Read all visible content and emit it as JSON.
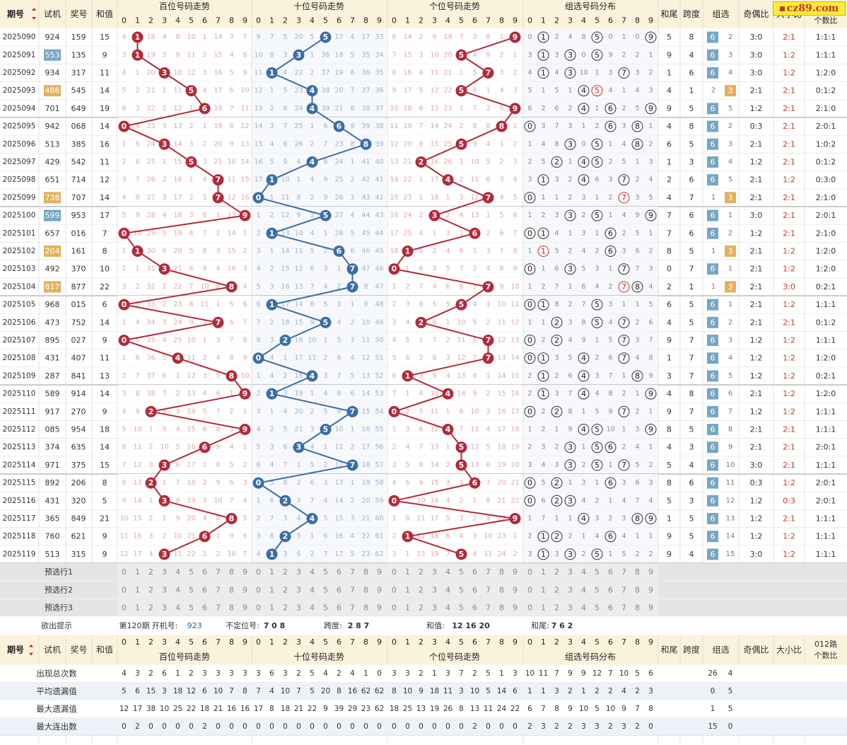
{
  "header": {
    "qihao": "期号",
    "sort_icon": "sort-arrows-icon",
    "shiji": "试机",
    "jianghao": "奖号",
    "hezhi": "和值",
    "sections": [
      "百位号码走势",
      "十位号码走势",
      "个位号码走势",
      "组选号码分布"
    ],
    "hewei": "和尾",
    "kuadu": "跨度",
    "zuxuan": "组选",
    "jiou": "奇偶比",
    "daxiao": "大小比",
    "road_line1": "012路",
    "road_line2": "个数比",
    "road_top": "个数比"
  },
  "logo_text": "cz89.com",
  "rows": [
    {
      "p": "2025090",
      "s": "924",
      "a": "159",
      "h": "15",
      "hs": "1",
      "l": "4,1,18,4,8,10,1,14,3,7",
      "t": "9,7,5,20,5,35,17,4,17,33",
      "g": "6,14,2,9,19,7,3,8,1,9",
      "hw": "5",
      "kd": "8",
      "zx": "6",
      "zn": "2",
      "jo": "3:0",
      "dx": "2:1",
      "lr": "1:1:1"
    },
    {
      "p": "2025091",
      "s": "553",
      "sh": "b",
      "a": "135",
      "h": "9",
      "hs": "1",
      "l": "3,1,19,5,9,11,2,15,4,8",
      "t": "10,8,3,21,1,36,18,5,35,34",
      "g": "7,15,3,10,20,5,4,9,2,1",
      "hw": "9",
      "kd": "4",
      "zx": "6",
      "zn": "3",
      "jo": "3:0",
      "dx": "1:2",
      "lr": "1:1:1"
    },
    {
      "p": "2025092",
      "s": "934",
      "a": "317",
      "h": "11",
      "hs": "3",
      "l": "4,1,20,3,10,12,3,16,5,9",
      "t": "11,1,4,22,2,37,19,6,36,35",
      "g": "8,16,4,11,21,1,5,7,3,2",
      "hw": "1",
      "kd": "6",
      "zx": "6",
      "zn": "4",
      "jo": "3:0",
      "dx": "1:2",
      "lr": "1:2:0"
    },
    {
      "p": "2025093",
      "s": "486",
      "sh": "o",
      "a": "545",
      "h": "14",
      "hs": "5",
      "l": "5,2,21,1,11,5,4,17,6,10",
      "t": "12,1,5,23,4,38,20,7,37,36",
      "g": "9,17,5,12,22,5,6,1,4,3",
      "hw": "4",
      "kd": "1",
      "zx": "3",
      "zn": "2",
      "jo": "2:1",
      "dx": "2:1",
      "lr": "0:1:2"
    },
    {
      "p": "2025094",
      "s": "701",
      "a": "649",
      "h": "19",
      "hs": "6",
      "l": "6,3,22,2,12,1,6,18,7,11",
      "t": "13,2,6,24,4,39,21,8,38,37",
      "g": "10,18,6,13,23,1,7,2,5,9",
      "hw": "9",
      "kd": "5",
      "zx": "6",
      "zn": "5",
      "jo": "1:2",
      "dx": "2:1",
      "lr": "2:1:0"
    },
    {
      "p": "2025095",
      "s": "942",
      "a": "068",
      "h": "14",
      "hs": "0",
      "l": "0,4,23,3,13,2,1,19,8,12",
      "t": "14,3,7,25,1,6,22,9,39,38",
      "g": "11,19,7,14,24,2,8,8,6,1",
      "hw": "4",
      "kd": "8",
      "zx": "6",
      "zn": "2",
      "jo": "0:3",
      "dx": "2:1",
      "lr": "2:0:1"
    },
    {
      "p": "2025096",
      "s": "513",
      "a": "385",
      "h": "16",
      "hs": "3",
      "l": "1,5,24,3,14,3,2,20,9,13",
      "t": "15,4,8,26,2,7,23,8,40,39",
      "g": "12,20,8,15,25,5,9,4,1,2",
      "hw": "6",
      "kd": "5",
      "zx": "6",
      "zn": "3",
      "jo": "2:1",
      "dx": "2:1",
      "lr": "1:0:2"
    },
    {
      "p": "2025097",
      "s": "429",
      "a": "542",
      "h": "11",
      "hs": "5",
      "l": "2,6,25,1,15,5,3,21,10,14",
      "t": "16,5,9,4,3,8,24,1,41,40",
      "g": "13,21,2,16,26,1,10,5,2,3",
      "hw": "1",
      "kd": "3",
      "zx": "6",
      "zn": "4",
      "jo": "1:2",
      "dx": "2:1",
      "lr": "0:1:2"
    },
    {
      "p": "2025098",
      "s": "651",
      "a": "714",
      "h": "12",
      "hs": "7",
      "l": "3,7,26,2,16,1,4,7,11,15",
      "t": "17,1,10,1,4,9,25,2,42,41",
      "g": "14,22,1,17,4,2,11,6,3,4",
      "hw": "2",
      "kd": "6",
      "zx": "6",
      "zn": "5",
      "jo": "2:1",
      "dx": "1:2",
      "lr": "0:3:0"
    },
    {
      "p": "2025099",
      "s": "738",
      "sh": "o",
      "a": "707",
      "h": "14",
      "hs": "7",
      "l": "4,8,27,3,17,2,5,7,12,16",
      "t": "0,1,11,8,2,9,26,3,43,42",
      "g": "15,23,1,18,1,3,12,7,4,5",
      "hw": "4",
      "kd": "7",
      "zx": "3",
      "zn": "1",
      "jo": "2:1",
      "dx": "2:1",
      "lr": "2:1:0"
    },
    {
      "p": "2025100",
      "s": "599",
      "sh": "b",
      "a": "953",
      "h": "17",
      "hs": "9",
      "l": "5,9,28,4,18,3,6,1,13,9",
      "t": "1,2,12,9,3,5,27,4,44,43",
      "g": "16,24,2,3,2,4,13,1,5,6",
      "hw": "7",
      "kd": "6",
      "zx": "6",
      "zn": "1",
      "jo": "3:0",
      "dx": "2:1",
      "lr": "2:0:1"
    },
    {
      "p": "2025101",
      "s": "657",
      "a": "016",
      "h": "7",
      "hs": "0",
      "l": "0,10,29,5,19,4,7,2,14,1",
      "t": "2,1,13,10,4,1,28,5,45,44",
      "g": "17,25,4,1,3,1,6,2,6,7",
      "hw": "7",
      "kd": "6",
      "zx": "6",
      "zn": "2",
      "jo": "1:2",
      "dx": "2:1",
      "lr": "2:1:0"
    },
    {
      "p": "2025102",
      "s": "204",
      "sh": "o",
      "a": "161",
      "h": "8",
      "hs": "1",
      "l": "1,1,30,6,20,5,8,3,15,2",
      "t": "3,1,14,11,5,2,6,6,46,45",
      "g": "18,1,5,2,4,6,1,3,7,8",
      "hw": "8",
      "kd": "5",
      "zx": "3",
      "zn": "1",
      "jo": "2:1",
      "dx": "1:2",
      "lr": "1:2:0"
    },
    {
      "p": "2025103",
      "s": "492",
      "a": "370",
      "h": "10",
      "hs": "3",
      "l": "2,1,31,3,21,6,9,4,16,3",
      "t": "4,2,15,12,6,3,1,7,47,46",
      "g": "0,1,6,3,5,7,2,4,8,9",
      "hw": "0",
      "kd": "7",
      "zx": "6",
      "zn": "1",
      "jo": "2:1",
      "dx": "1:2",
      "lr": "1:2:0"
    },
    {
      "p": "2025104",
      "s": "817",
      "sh": "o",
      "a": "877",
      "h": "22",
      "hs": "8",
      "l": "3,2,32,1,22,7,10,8,17,4",
      "t": "5,3,16,13,7,4,2,7,8,47",
      "g": "1,2,7,4,6,8,3,7,9,10",
      "hw": "2",
      "kd": "1",
      "zx": "3",
      "zn": "1",
      "jo": "2:1",
      "dx": "3:0",
      "lr": "0:2:1"
    },
    {
      "p": "2025105",
      "s": "968",
      "a": "015",
      "h": "6",
      "hs": "0",
      "l": "0,3,33,2,23,8,11,1,5,6",
      "t": "6,1,17,14,8,5,3,1,9,48",
      "g": "2,3,8,5,5,9,4,1,10,11",
      "hw": "6",
      "kd": "5",
      "zx": "6",
      "zn": "1",
      "jo": "2:1",
      "dx": "1:2",
      "lr": "1:1:1"
    },
    {
      "p": "2025106",
      "s": "473",
      "a": "752",
      "h": "14",
      "hs": "7",
      "l": "1,4,34,3,24,9,7,2,6,7",
      "t": "7,2,18,15,9,5,4,2,10,49",
      "g": "3,4,2,6,1,10,5,2,11,12",
      "hw": "4",
      "kd": "5",
      "zx": "6",
      "zn": "2",
      "jo": "2:1",
      "dx": "2:1",
      "lr": "0:1:2"
    },
    {
      "p": "2025107",
      "s": "895",
      "a": "027",
      "h": "9",
      "hs": "0",
      "l": "0,5,35,4,25,10,1,3,7,8",
      "t": "8,3,2,16,10,1,5,3,11,50",
      "g": "4,5,1,7,2,11,6,7,12,13",
      "hw": "9",
      "kd": "7",
      "zx": "6",
      "zn": "3",
      "jo": "1:2",
      "dx": "1:2",
      "lr": "1:1:1"
    },
    {
      "p": "2025108",
      "s": "431",
      "a": "407",
      "h": "11",
      "hs": "4",
      "l": "1,6,36,5,4,11,2,4,8,9",
      "t": "0,4,1,17,11,2,6,4,12,51",
      "g": "5,6,2,8,3,12,7,7,13,14",
      "hw": "1",
      "kd": "7",
      "zx": "6",
      "zn": "4",
      "jo": "1:2",
      "dx": "1:2",
      "lr": "1:2:0"
    },
    {
      "p": "2025109",
      "s": "287",
      "a": "841",
      "h": "13",
      "hs": "8",
      "l": "2,7,37,6,1,12,3,5,8,10",
      "t": "1,4,2,18,4,3,7,5,13,52",
      "g": "6,1,3,9,4,13,8,1,14,15",
      "hw": "3",
      "kd": "7",
      "zx": "6",
      "zn": "5",
      "jo": "1:2",
      "dx": "1:2",
      "lr": "0:2:1"
    },
    {
      "p": "2025110",
      "s": "589",
      "a": "914",
      "h": "14",
      "hs": "9",
      "l": "3,8,38,7,2,13,4,6,1,9",
      "t": "2,1,3,19,1,4,8,6,14,53",
      "g": "7,1,4,10,4,14,9,2,15,16",
      "hw": "4",
      "kd": "8",
      "zx": "6",
      "zn": "6",
      "jo": "2:1",
      "dx": "1:2",
      "lr": "1:2:0"
    },
    {
      "p": "2025111",
      "s": "917",
      "a": "270",
      "h": "9",
      "hs": "2",
      "l": "4,9,2,8,3,14,5,7,2,1",
      "t": "3,1,4,20,2,5,9,7,15,54",
      "g": "0,2,5,11,1,6,10,3,16,17",
      "hw": "9",
      "kd": "7",
      "zx": "6",
      "zn": "7",
      "jo": "1:2",
      "dx": "1:2",
      "lr": "1:1:1"
    },
    {
      "p": "2025112",
      "s": "085",
      "a": "954",
      "h": "18",
      "hs": "9",
      "l": "5,10,1,9,4,15,6,8,3,9",
      "t": "4,2,5,21,3,5,10,1,16,55",
      "g": "1,3,6,12,4,7,11,4,17,18",
      "hw": "8",
      "kd": "5",
      "zx": "6",
      "zn": "8",
      "jo": "2:1",
      "dx": "2:1",
      "lr": "1:1:1"
    },
    {
      "p": "2025113",
      "s": "374",
      "a": "635",
      "h": "14",
      "hs": "6",
      "l": "6,11,2,10,5,16,6,9,4,1",
      "t": "5,3,6,3,4,1,11,2,17,56",
      "g": "2,4,7,13,1,5,12,5,18,19",
      "hw": "4",
      "kd": "3",
      "zx": "6",
      "zn": "9",
      "jo": "2:1",
      "dx": "2:1",
      "lr": "2:0:1"
    },
    {
      "p": "2025114",
      "s": "971",
      "a": "375",
      "h": "15",
      "hs": "3",
      "l": "7,12,3,3,6,17,1,8,5,2",
      "t": "6,4,7,1,5,2,12,7,18,57",
      "g": "3,5,8,14,2,5,13,6,19,20",
      "hw": "5",
      "kd": "4",
      "zx": "6",
      "zn": "10",
      "jo": "3:0",
      "dx": "2:1",
      "lr": "1:1:1"
    },
    {
      "p": "2025115",
      "s": "892",
      "a": "206",
      "h": "8",
      "hs": "2",
      "l": "8,13,2,1,7,18,2,9,6,3",
      "t": "0,5,8,2,6,3,13,1,19,58",
      "g": "4,6,9,15,3,1,6,7,20,21",
      "hw": "8",
      "kd": "6",
      "zx": "6",
      "zn": "11",
      "jo": "0:3",
      "dx": "1:2",
      "lr": "2:0:1"
    },
    {
      "p": "2025116",
      "s": "431",
      "a": "320",
      "h": "5",
      "hs": "3",
      "l": "9,14,1,3,8,19,3,10,7,4",
      "t": "1,6,2,3,7,4,14,2,20,59",
      "g": "0,7,10,16,4,2,1,8,21,22",
      "hw": "5",
      "kd": "3",
      "zx": "6",
      "zn": "12",
      "jo": "1:2",
      "dx": "0:3",
      "lr": "2:0:1"
    },
    {
      "p": "2025117",
      "s": "365",
      "a": "849",
      "h": "21",
      "hs": "8",
      "l": "10,15,2,1,9,20,4,8,8,5",
      "t": "2,7,3,4,4,5,15,3,21,60",
      "g": "1,8,11,17,5,3,2,9,22,9",
      "hw": "1",
      "kd": "5",
      "zx": "6",
      "zn": "13",
      "jo": "1:2",
      "dx": "2:1",
      "lr": "1:1:1"
    },
    {
      "p": "2025118",
      "s": "760",
      "a": "621",
      "h": "9",
      "hs": "6",
      "l": "11,16,3,2,10,21,6,1,9,6",
      "t": "3,8,2,5,1,6,16,4,22,61",
      "g": "2,1,12,18,6,4,3,10,23,1",
      "hw": "9",
      "kd": "5",
      "zx": "6",
      "zn": "14",
      "jo": "1:2",
      "dx": "1:2",
      "lr": "1:1:1"
    },
    {
      "p": "2025119",
      "s": "513",
      "a": "315",
      "h": "9",
      "hs": "3",
      "l": "12,17,4,3,11,22,1,2,10,7",
      "t": "4,1,3,6,2,7,17,5,23,62",
      "g": "3,1,13,19,7,5,4,11,24,2",
      "hw": "9",
      "kd": "4",
      "zx": "6",
      "zn": "15",
      "jo": "3:0",
      "dx": "1:2",
      "lr": "1:1:1"
    }
  ],
  "zuxuan_dist": [
    {
      "c": "0,1,2,4,8,5,0,1,0,9",
      "o": "1,5,9"
    },
    {
      "c": "3,1,3,3,0,5,9,2,2,1",
      "o": "1,3,5"
    },
    {
      "c": "4,1,4,3,10,1,3,7,3,2",
      "o": "1,3,7"
    },
    {
      "c": "5,1,5,1,4,5,4,1,4,3",
      "o": "4,5",
      "r": "5"
    },
    {
      "c": "6,2,6,2,4,1,6,2,5,9",
      "o": "4,6,9"
    },
    {
      "c": "0,3,7,3,1,2,6,3,8,1",
      "o": "0,6,8"
    },
    {
      "c": "1,4,8,3,0,5,1,4,8,2",
      "o": "3,5,8"
    },
    {
      "c": "2,5,2,1,4,5,2,5,1,3",
      "o": "2,4,5"
    },
    {
      "c": "3,1,3,2,4,6,3,7,2,4",
      "o": "1,4,7"
    },
    {
      "c": "0,1,1,2,3,1,2,7,3,5",
      "o": "0,7",
      "r": "7"
    },
    {
      "c": "1,2,3,3,2,5,1,4,9,6",
      "o": "3,5,9"
    },
    {
      "c": "0,1,4,1,3,1,6,2,5,1",
      "o": "0,1,6"
    },
    {
      "c": "1,1,5,2,4,2,6,3,6,2",
      "o": "6",
      "r": "1"
    },
    {
      "c": "0,1,6,3,5,3,1,7,7,3",
      "o": "0,3,7"
    },
    {
      "c": "1,2,7,1,6,4,2,7,8,4",
      "o": "7,8",
      "r": "7"
    },
    {
      "c": "0,1,8,2,7,5,3,1,1,5",
      "o": "0,1,5"
    },
    {
      "c": "1,1,2,3,8,5,4,7,2,6",
      "o": "2,5,7"
    },
    {
      "c": "0,2,2,4,9,1,5,7,3,7",
      "o": "0,2,7"
    },
    {
      "c": "1,1,3,5,4,2,6,7,4,8",
      "o": "0,1,4,7"
    },
    {
      "c": "2,1,2,6,4,3,7,1,8,9",
      "o": "1,4,8"
    },
    {
      "c": "2,1,3,7,4,4,8,2,1,9",
      "o": "1,4,9"
    },
    {
      "c": "0,2,2,8,1,5,9,7,2,1",
      "o": "0,2,7"
    },
    {
      "c": "1,2,1,9,4,5,10,1,3,9",
      "o": "4,5,9"
    },
    {
      "c": "2,3,2,3,1,5,6,2,4,1",
      "o": "3,5,6"
    },
    {
      "c": "3,4,3,3,2,5,1,7,5,2",
      "o": "3,5,7"
    },
    {
      "c": "0,5,2,1,3,1,6,3,6,3",
      "o": "0,2,6"
    },
    {
      "c": "0,6,2,3,4,2,1,4,7,4",
      "o": "0,2,3"
    },
    {
      "c": "1,7,1,1,4,3,2,3,8,9",
      "o": "4,8,9"
    },
    {
      "c": "2,1,2,2,1,4,6,4,1,1",
      "o": "1,2,6"
    },
    {
      "c": "3,1,3,3,2,5,1,5,2,2",
      "o": "1,3,5"
    }
  ],
  "preselect": [
    "预选行1",
    "预选行2",
    "预选行3"
  ],
  "hint": {
    "label": "欲出提示",
    "period_text": "第120期",
    "kaiji_label": "开机号:",
    "kaiji_value": "923",
    "budingwei_label": "不定位号:",
    "budingwei_value": "7 0 8",
    "kuadu_label": "跨度:",
    "kuadu_value": "2 8 7",
    "hezhi_label": "和值:",
    "hezhi_value": "12 16 20",
    "hewei_label": "和尾:",
    "hewei_value": "7 6 2"
  },
  "stats": [
    {
      "label": "出现总次数",
      "l": "4,3,2,6,1,2,3,3,3,3",
      "t": "3,6,3,2,5,4,2,4,1,0",
      "g": "3,3,2,1,3,7,2,5,1,3",
      "zx": "10,11,7,9,9,12,7,10,5,6",
      "z6": "26",
      "z3": "4"
    },
    {
      "label": "平均遗漏值",
      "l": "5,6,15,3,18,12,6,10,7,8",
      "t": "7,4,10,7,5,20,8,16,62,62",
      "g": "8,10,9,18,11,3,10,5,14,6",
      "zx": "1,1,3,2,1,2,2,4,2,3",
      "z6": "0",
      "z3": "5"
    },
    {
      "label": "最大遗漏值",
      "l": "12,17,38,10,25,22,18,21,16,16",
      "t": "17,8,18,21,22,9,39,29,23,62",
      "g": "18,25,13,19,26,8,13,11,24,22",
      "zx": "6,7,8,9,10,5,10,9,7,8",
      "z6": "1",
      "z3": "5"
    },
    {
      "label": "最大连出数",
      "l": "0,2,0,0,0,0,2,0,0,0",
      "t": "0,0,0,0,0,0,0,0,0,0",
      "g": "0,0,0,0,0,0,2,0,0,0",
      "zx": "2,3,2,2,3,3,2,3,2,0",
      "z6": "15",
      "z3": "0"
    }
  ],
  "colors": {
    "red": "#b22a3a",
    "blue": "#3b6ea5",
    "header_bg": "#fbf2dc",
    "band_bg": "#eef2f8",
    "zuxuan6": "#76a7c2",
    "zuxuan3": "#e2b15e"
  }
}
